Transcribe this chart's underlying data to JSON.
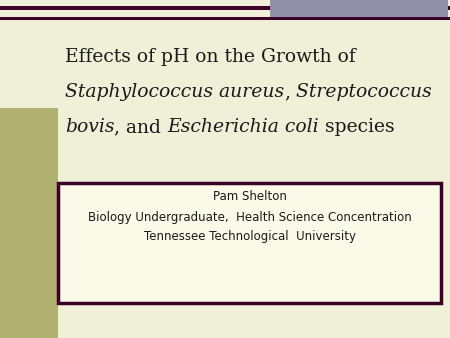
{
  "bg_color": "#f0f0d8",
  "left_bar_color": "#b0b070",
  "top_right_bar_color": "#9090a8",
  "box_border_color": "#3a0028",
  "box_fill_color": "#fafae8",
  "text_color": "#1a1a1a",
  "title_fontsize": 13.5,
  "subtitle_fontsize": 8.5,
  "subtitle_line1": "Pam Shelton",
  "subtitle_line2": "Biology Undergraduate,  Health Science Concentration",
  "subtitle_line3": "Tennessee Technological  University"
}
